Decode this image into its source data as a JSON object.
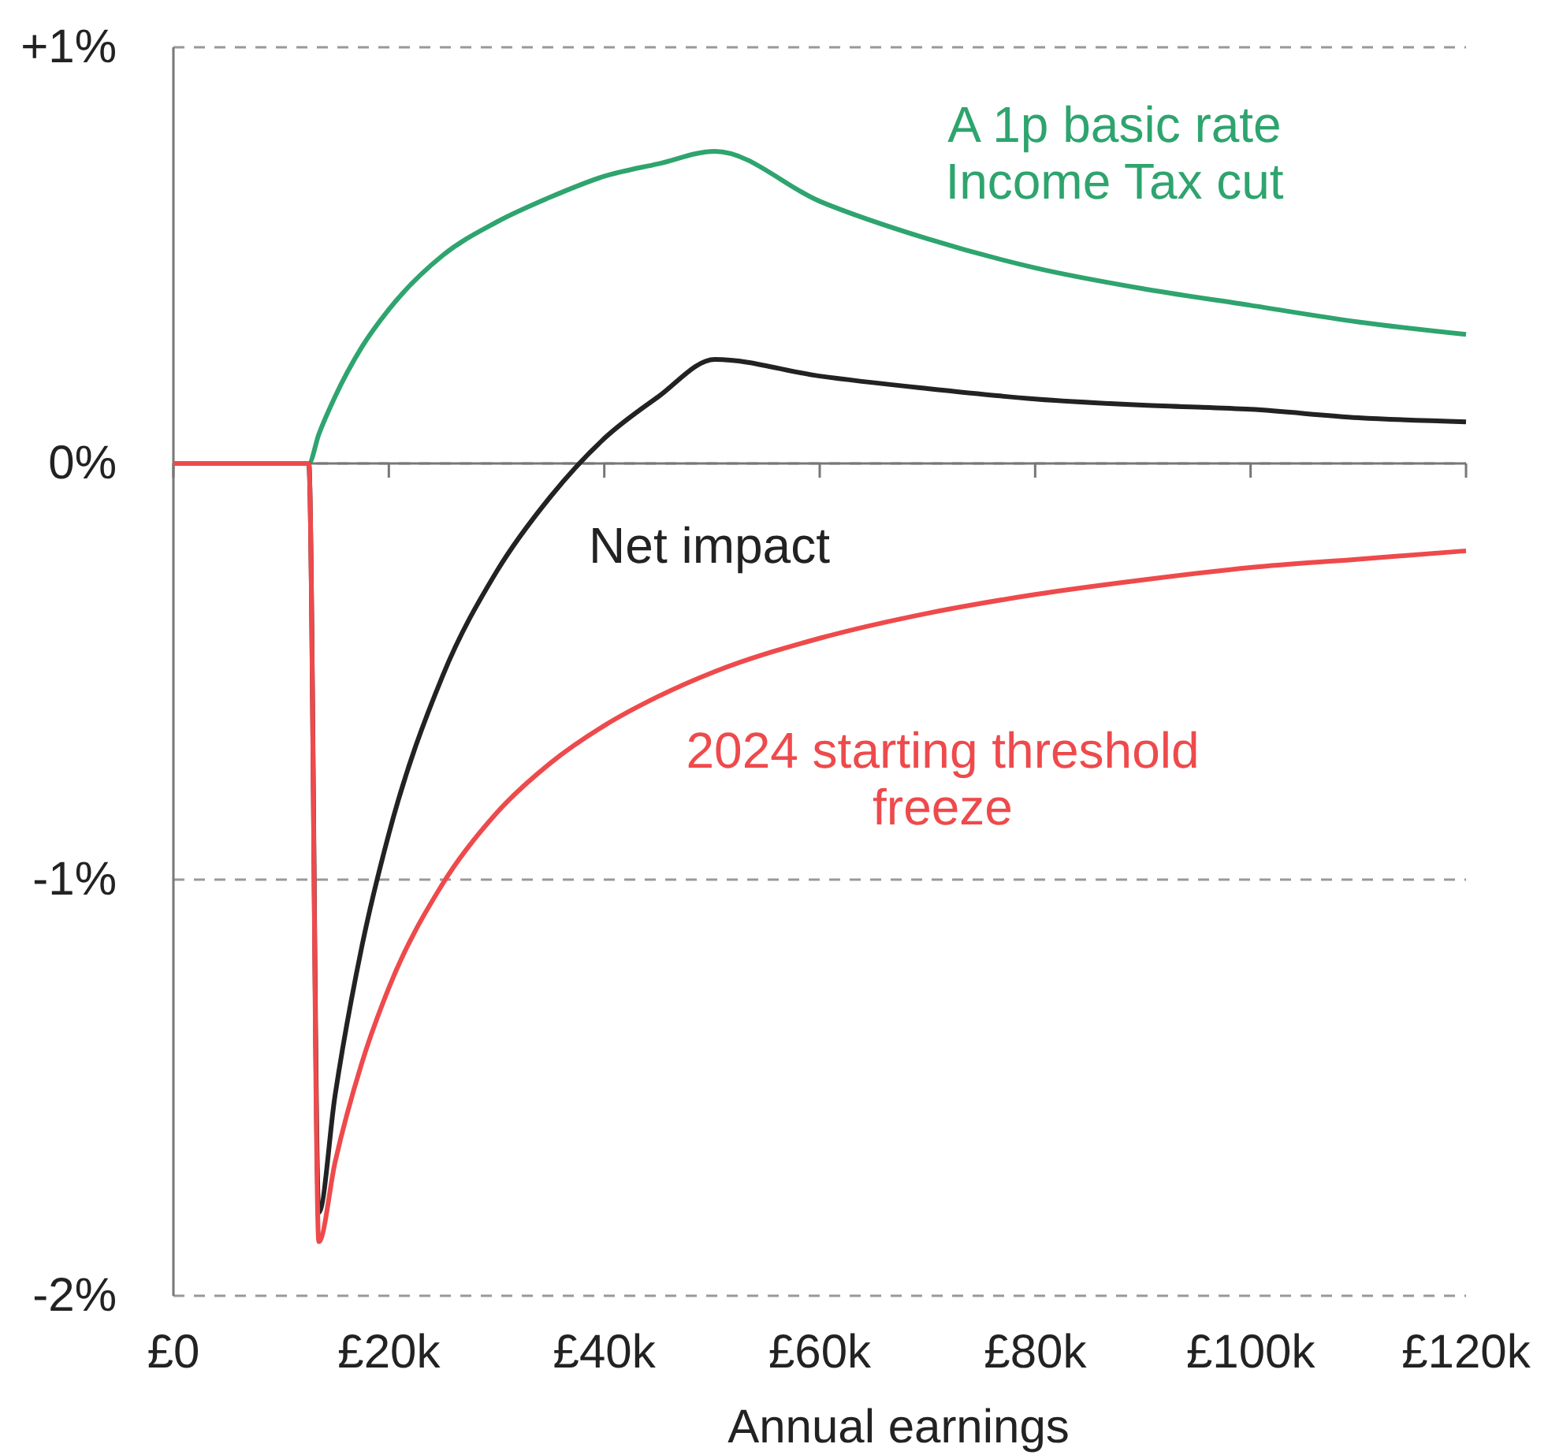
{
  "chart_data": {
    "type": "line",
    "xlabel": "Annual earnings",
    "xlim": [
      0,
      120000
    ],
    "ylim": [
      -2,
      1
    ],
    "xticks": [
      {
        "value": 0,
        "label": "£0"
      },
      {
        "value": 20000,
        "label": "£20k"
      },
      {
        "value": 40000,
        "label": "£40k"
      },
      {
        "value": 60000,
        "label": "£60k"
      },
      {
        "value": 80000,
        "label": "£80k"
      },
      {
        "value": 100000,
        "label": "£100k"
      },
      {
        "value": 120000,
        "label": "£120k"
      }
    ],
    "yticks": [
      {
        "value": 1,
        "label": "+1%"
      },
      {
        "value": 0,
        "label": "0%"
      },
      {
        "value": -1,
        "label": "-1%"
      },
      {
        "value": -2,
        "label": "-2%"
      }
    ],
    "grid": "y",
    "legend": false,
    "marker": "none",
    "line_style": "solid",
    "series": [
      {
        "name": "A 1p basic rate Income Tax cut",
        "color": "#2ea46e",
        "x": [
          0,
          12570,
          13500,
          15000,
          17500,
          20000,
          25000,
          30000,
          35000,
          40000,
          45000,
          50270,
          60000,
          70000,
          80000,
          90000,
          100000,
          110000,
          120000
        ],
        "values": [
          0,
          0,
          0.07,
          0.16,
          0.28,
          0.37,
          0.5,
          0.58,
          0.64,
          0.69,
          0.72,
          0.75,
          0.63,
          0.54,
          0.47,
          0.42,
          0.38,
          0.34,
          0.31
        ]
      },
      {
        "name": "Net impact",
        "color": "#222222",
        "x": [
          0,
          12570,
          13500,
          15000,
          17500,
          20000,
          25000,
          30000,
          35000,
          40000,
          45000,
          50270,
          60000,
          70000,
          80000,
          90000,
          100000,
          110000,
          120000
        ],
        "values": [
          0,
          0,
          -1.8,
          -1.52,
          -1.16,
          -0.89,
          -0.51,
          -0.26,
          -0.08,
          0.06,
          0.16,
          0.25,
          0.21,
          0.18,
          0.155,
          0.14,
          0.13,
          0.11,
          0.1
        ]
      },
      {
        "name": "2024 starting threshold freeze",
        "color": "#ee4a4c",
        "x": [
          0,
          12570,
          13500,
          15000,
          17500,
          20000,
          25000,
          30000,
          35000,
          40000,
          45000,
          50270,
          60000,
          70000,
          80000,
          90000,
          100000,
          110000,
          120000
        ],
        "values": [
          0,
          0,
          -1.87,
          -1.68,
          -1.44,
          -1.26,
          -1.01,
          -0.84,
          -0.72,
          -0.63,
          -0.56,
          -0.5,
          -0.42,
          -0.36,
          -0.315,
          -0.28,
          -0.25,
          -0.23,
          -0.21
        ]
      }
    ]
  }
}
